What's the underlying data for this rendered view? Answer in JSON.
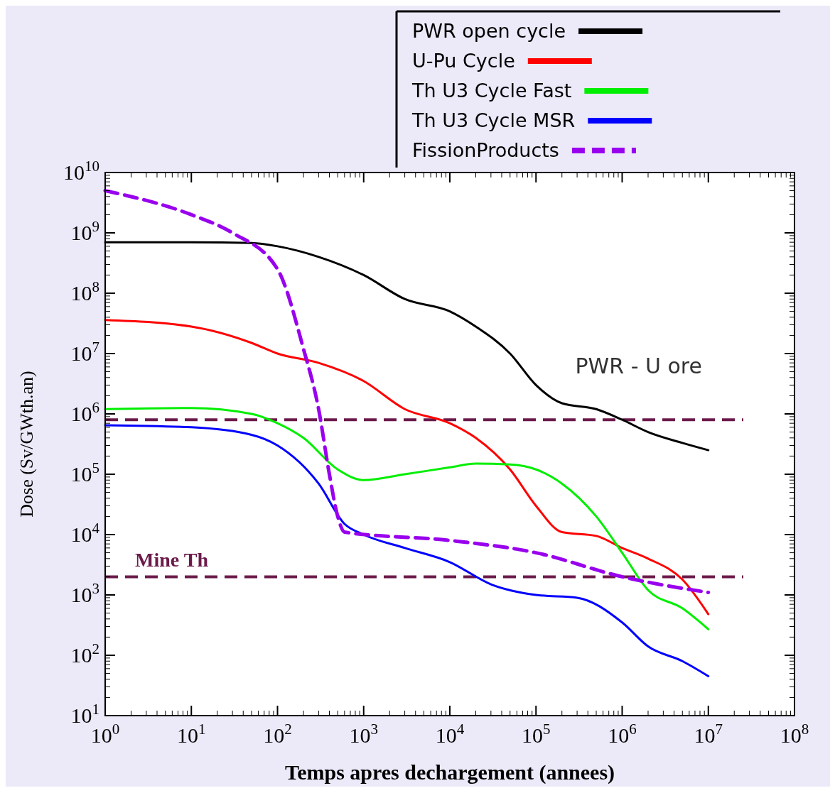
{
  "chart_data": {
    "type": "line",
    "xlabel": "Temps apres dechargement (annees)",
    "ylabel": "Dose (Sv/GWth.an)",
    "log": "xy",
    "xlim": [
      1,
      100000000
    ],
    "ylim": [
      10,
      10000000000
    ],
    "xticks": [
      {
        "value": 1,
        "label": "10$^{0}$"
      },
      {
        "value": 10,
        "label": "10$^{1}$"
      },
      {
        "value": 100,
        "label": "10$^{2}$"
      },
      {
        "value": 1000,
        "label": "10$^{3}$"
      },
      {
        "value": 10000,
        "label": "10$^{4}$"
      },
      {
        "value": 100000,
        "label": "10$^{5}$"
      },
      {
        "value": 1000000,
        "label": "10$^{6}$"
      },
      {
        "value": 10000000,
        "label": "10$^{7}$"
      },
      {
        "value": 100000000,
        "label": "10$^{8}$"
      }
    ],
    "yticks": [
      {
        "value": 10,
        "label": "10$^{1}$"
      },
      {
        "value": 100,
        "label": "10$^{2}$"
      },
      {
        "value": 1000,
        "label": "10$^{3}$"
      },
      {
        "value": 10000,
        "label": "10$^{4}$"
      },
      {
        "value": 100000,
        "label": "10$^{5}$"
      },
      {
        "value": 1000000,
        "label": "10$^{6}$"
      },
      {
        "value": 10000000,
        "label": "10$^{7}$"
      },
      {
        "value": 100000000,
        "label": "10$^{8}$"
      },
      {
        "value": 1000000000,
        "label": "10$^{9}$"
      },
      {
        "value": 10000000000,
        "label": "10$^{10}$"
      }
    ],
    "grid": false,
    "legend": "top right",
    "marker": "none",
    "series": [
      {
        "name": "PWR open cycle",
        "color": "#000000",
        "line_style": "solid",
        "x": [
          1,
          10,
          50,
          100,
          300,
          1000,
          3000,
          10000,
          20000,
          50000,
          100000,
          200000,
          500000,
          1000000,
          2000000,
          5000000,
          10000000
        ],
        "values": [
          700000000,
          700000000,
          680000000,
          600000000,
          400000000,
          200000000,
          80000000,
          50000000,
          28000000,
          10000000,
          3000000,
          1500000,
          1200000,
          800000,
          500000,
          330000,
          250000
        ]
      },
      {
        "name": "U-Pu Cycle",
        "color": "#ff0000",
        "line_style": "solid",
        "x": [
          1,
          10,
          50,
          100,
          300,
          1000,
          3000,
          10000,
          20000,
          50000,
          100000,
          200000,
          500000,
          1000000,
          2000000,
          5000000,
          10000000
        ],
        "values": [
          36000000,
          28000000,
          15000000,
          10000000,
          7000000,
          3500000,
          1200000,
          700000,
          400000,
          120000,
          30000,
          11000,
          9500,
          6000,
          4000,
          1800,
          480
        ]
      },
      {
        "name": "Th U3 Cycle  Fast",
        "color": "#00ee00",
        "line_style": "solid",
        "x": [
          1,
          10,
          50,
          100,
          200,
          500,
          1000,
          3000,
          10000,
          20000,
          50000,
          100000,
          200000,
          500000,
          1000000,
          2000000,
          5000000,
          10000000
        ],
        "values": [
          1200000,
          1250000,
          1000000,
          700000,
          400000,
          120000,
          80000,
          100000,
          130000,
          150000,
          145000,
          120000,
          70000,
          20000,
          5000,
          1200,
          600,
          270
        ]
      },
      {
        "name": "Th U3 Cycle  MSR",
        "color": "#0000ff",
        "line_style": "solid",
        "x": [
          1,
          10,
          50,
          100,
          300,
          600,
          1000,
          3000,
          10000,
          30000,
          100000,
          300000,
          1000000,
          2000000,
          5000000,
          10000000
        ],
        "values": [
          650000,
          600000,
          450000,
          300000,
          70000,
          15000,
          10000,
          6000,
          3500,
          1500,
          1000,
          900,
          350,
          140,
          80,
          45
        ]
      },
      {
        "name": "FissionProducts",
        "color": "#9900ee",
        "line_style": "dashed",
        "x": [
          1,
          10,
          30,
          100,
          200,
          300,
          400,
          500,
          600,
          10000,
          100000,
          1000000,
          10000000
        ],
        "values": [
          5000000000,
          2000000000,
          1000000000,
          250000000,
          12000000,
          1200000,
          100000,
          20000,
          11000,
          8000,
          5000,
          2000,
          1100
        ]
      }
    ],
    "ref_lines": [
      {
        "axis": "y",
        "value": 800000,
        "label": "PWR - U ore",
        "color": "#6b1a4a",
        "line_style": "dashed"
      },
      {
        "axis": "y",
        "value": 2000,
        "label": "Mine Th",
        "color": "#6b1a4a",
        "line_style": "dashed"
      }
    ]
  }
}
